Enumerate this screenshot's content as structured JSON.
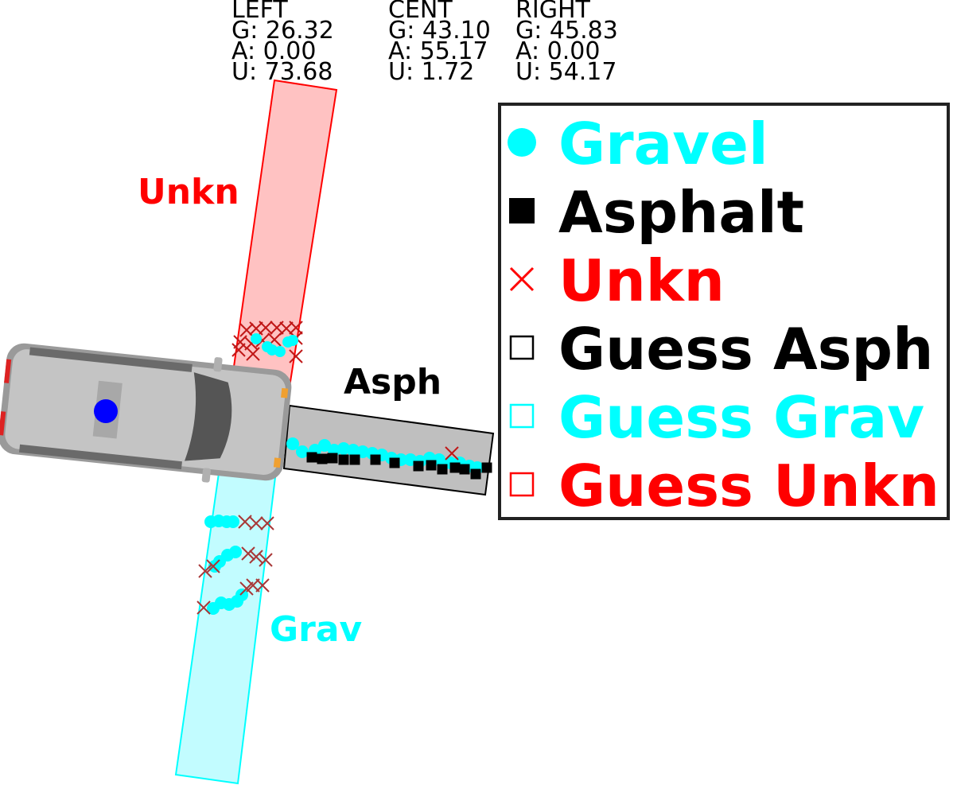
{
  "colors": {
    "gravel": "#00ffff",
    "asphalt": "#000000",
    "unknown": "#ff0000",
    "unknown_zone_fill": "#ffbfbf",
    "gravel_zone_fill": "#bffcff",
    "asphalt_zone_fill": "#bfbfbf",
    "vehicle_body": "#c4c4c4",
    "vehicle_marker": "#0000ff"
  },
  "stats": {
    "left": {
      "header": "LEFT",
      "g": "G: 26.32",
      "a": "A: 0.00",
      "u": "U: 73.68"
    },
    "cent": {
      "header": "CENT",
      "g": "G: 43.10",
      "a": "A: 55.17",
      "u": "U: 1.72"
    },
    "right": {
      "header": "RIGHT",
      "g": "G: 45.83",
      "a": "A: 0.00",
      "u": "U: 54.17"
    }
  },
  "zone_labels": {
    "unknown": "Unkn",
    "asphalt": "Asph",
    "gravel": "Grav"
  },
  "legend": [
    {
      "label": "Gravel",
      "marker": "filled-circle",
      "color": "#00ffff"
    },
    {
      "label": "Asphalt",
      "marker": "filled-square",
      "color": "#000000"
    },
    {
      "label": "Unkn",
      "marker": "x",
      "color": "#ff0000"
    },
    {
      "label": "Guess Asph",
      "marker": "open-square",
      "color": "#000000"
    },
    {
      "label": "Guess Grav",
      "marker": "open-square",
      "color": "#00ffff"
    },
    {
      "label": "Guess Unkn",
      "marker": "open-square",
      "color": "#ff0000"
    }
  ],
  "chart_data": {
    "type": "scatter",
    "title": "",
    "categories": [
      "LEFT",
      "CENT",
      "RIGHT"
    ],
    "series": [
      {
        "name": "Gravel",
        "values": [
          26.32,
          43.1,
          45.83
        ]
      },
      {
        "name": "Asphalt",
        "values": [
          0.0,
          55.17,
          0.0
        ]
      },
      {
        "name": "Unkn",
        "values": [
          73.68,
          1.72,
          54.17
        ]
      }
    ],
    "icons": [
      "vehicle-icon"
    ]
  }
}
